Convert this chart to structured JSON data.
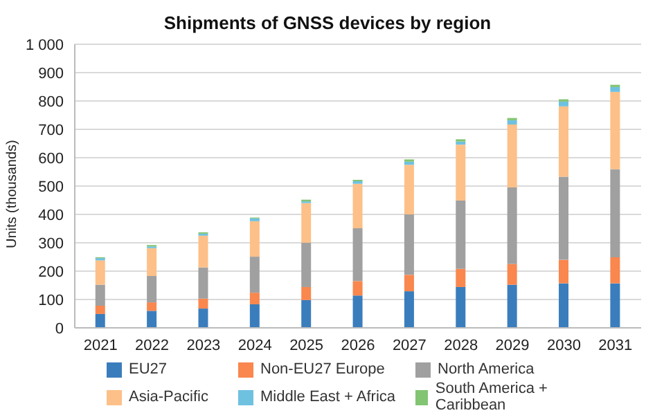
{
  "chart_data": {
    "type": "bar",
    "title": "Shipments of GNSS devices by region",
    "ylabel": "Units (thousands)",
    "categories": [
      "2021",
      "2022",
      "2023",
      "2024",
      "2025",
      "2026",
      "2027",
      "2028",
      "2029",
      "2030",
      "2031"
    ],
    "stacked": true,
    "series": [
      {
        "name": "EU27",
        "color": "#3a7dbd",
        "values": [
          49,
          60,
          68,
          83,
          98,
          114,
          129,
          144,
          152,
          157,
          157
        ]
      },
      {
        "name": "Non-EU27 Europe",
        "color": "#f9874e",
        "values": [
          29,
          30,
          35,
          41,
          46,
          51,
          58,
          64,
          73,
          83,
          92
        ]
      },
      {
        "name": "North America",
        "color": "#a0a0a0",
        "values": [
          74,
          93,
          110,
          127,
          156,
          186,
          213,
          241,
          270,
          293,
          310
        ]
      },
      {
        "name": "Asia-Pacific",
        "color": "#fdc088",
        "values": [
          86,
          98,
          112,
          125,
          140,
          157,
          175,
          197,
          222,
          248,
          273
        ]
      },
      {
        "name": "Middle East + Africa",
        "color": "#6fc1e0",
        "values": [
          8,
          6,
          7,
          10,
          6,
          9,
          11,
          11,
          15,
          17,
          17
        ]
      },
      {
        "name": "South America + Caribbean",
        "color": "#82c472",
        "values": [
          3,
          5,
          5,
          3,
          6,
          5,
          8,
          8,
          8,
          8,
          8
        ]
      }
    ],
    "ylim": [
      0,
      1000
    ],
    "yticks": [
      0,
      100,
      200,
      300,
      400,
      500,
      600,
      700,
      800,
      900,
      {
        "value": 1000,
        "label": "1 000"
      }
    ],
    "grid": "y",
    "legend": "bottom"
  }
}
